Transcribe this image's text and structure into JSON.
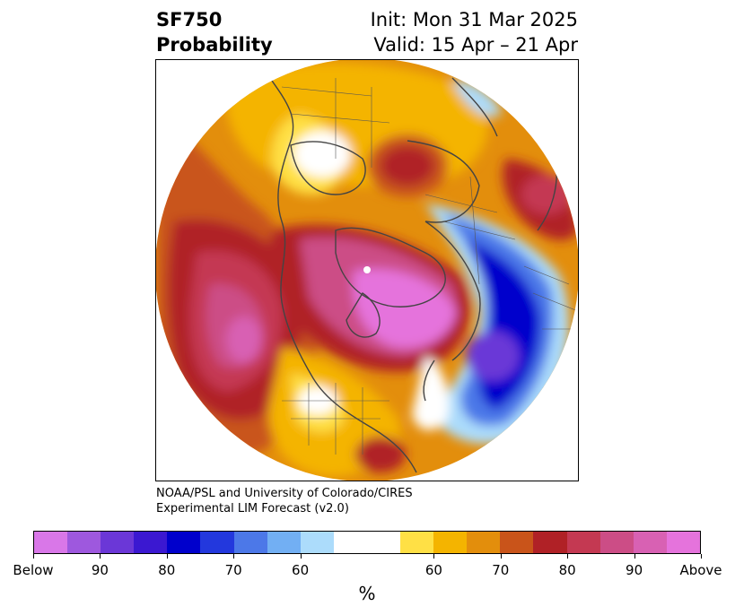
{
  "header": {
    "variable": "SF750",
    "product": "Probability",
    "init": "Init: Mon 31 Mar 2025",
    "valid": "Valid: 15 Apr – 21 Apr"
  },
  "credit": {
    "line1": "NOAA/PSL and University of Colorado/CIRES",
    "line2": "Experimental LIM Forecast (v2.0)"
  },
  "colorbar": {
    "unit": "%",
    "colors": [
      "#d977e8",
      "#9e58de",
      "#6b37d7",
      "#3b18d1",
      "#0000cc",
      "#2338dd",
      "#4c78e8",
      "#72aff3",
      "#acdcfb",
      "#ffffff",
      "#ffffff",
      "#ffe045",
      "#f4b400",
      "#e38e0c",
      "#c9541a",
      "#b02126",
      "#c43952",
      "#cc4d86",
      "#d861b3",
      "#e573dc"
    ],
    "labels": [
      "Below",
      "90",
      "80",
      "70",
      "60",
      "60",
      "70",
      "80",
      "90",
      "Above"
    ]
  },
  "map": {
    "projection": "north-polar-stereographic",
    "colors": {
      "below_strong": "#6b37d7",
      "below_mid": "#0000cc",
      "below_weak": "#acdcfb",
      "above_light": "#ffe045",
      "above_gold": "#f4b400",
      "above_orange": "#e38e0c",
      "above_rust": "#c9541a",
      "above_red": "#b02126",
      "above_rose": "#c43952",
      "above_pink": "#cc4d86",
      "above_magenta": "#e573dc"
    }
  }
}
